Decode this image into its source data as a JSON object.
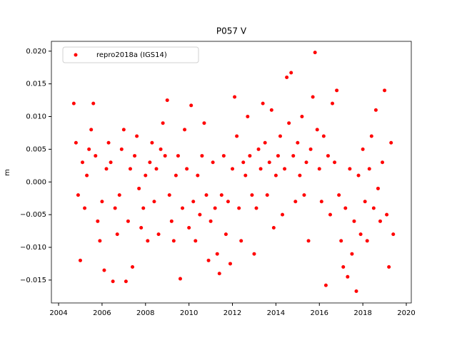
{
  "chart_data": {
    "type": "scatter",
    "title": "P057 V",
    "y_label": "m",
    "legend_loc": "upper left",
    "grid": false,
    "xlim": [
      2003.67,
      2020.23
    ],
    "xticks": [
      2004,
      2006,
      2008,
      2010,
      2012,
      2014,
      2016,
      2018,
      2020
    ],
    "ylim": [
      -0.0185,
      0.0215
    ],
    "yticks": [
      {
        "value": 0.02,
        "label": "0.020"
      },
      {
        "value": 0.015,
        "label": "0.015"
      },
      {
        "value": 0.01,
        "label": "0.010"
      },
      {
        "value": 0.005,
        "label": "0.005"
      },
      {
        "value": 0,
        "label": "0.000"
      },
      {
        "value": -0.005,
        "label": "−0.005"
      },
      {
        "value": -0.01,
        "label": "−0.010"
      },
      {
        "value": -0.015,
        "label": "−0.015"
      }
    ],
    "series": [
      {
        "name": "repro2018a (IGS14)",
        "color": "#ff0000",
        "x": [
          2004.7,
          2004.8,
          2004.9,
          2005.0,
          2005.1,
          2005.2,
          2005.3,
          2005.4,
          2005.5,
          2005.6,
          2005.7,
          2005.8,
          2005.9,
          2006.0,
          2006.1,
          2006.2,
          2006.3,
          2006.4,
          2006.5,
          2006.6,
          2006.7,
          2006.8,
          2006.9,
          2007.0,
          2007.1,
          2007.2,
          2007.3,
          2007.4,
          2007.5,
          2007.6,
          2007.7,
          2007.8,
          2007.9,
          2008.0,
          2008.1,
          2008.2,
          2008.3,
          2008.4,
          2008.5,
          2008.6,
          2008.7,
          2008.8,
          2008.9,
          2009.0,
          2009.1,
          2009.2,
          2009.3,
          2009.4,
          2009.5,
          2009.6,
          2009.7,
          2009.8,
          2009.9,
          2010.0,
          2010.1,
          2010.2,
          2010.3,
          2010.4,
          2010.5,
          2010.6,
          2010.7,
          2010.8,
          2010.9,
          2011.0,
          2011.1,
          2011.2,
          2011.3,
          2011.4,
          2011.5,
          2011.6,
          2011.7,
          2011.8,
          2011.9,
          2012.0,
          2012.1,
          2012.2,
          2012.3,
          2012.4,
          2012.5,
          2012.6,
          2012.7,
          2012.8,
          2012.9,
          2013.0,
          2013.1,
          2013.2,
          2013.3,
          2013.4,
          2013.5,
          2013.6,
          2013.7,
          2013.8,
          2013.9,
          2014.0,
          2014.1,
          2014.2,
          2014.3,
          2014.4,
          2014.5,
          2014.6,
          2014.7,
          2014.8,
          2014.9,
          2015.0,
          2015.1,
          2015.2,
          2015.3,
          2015.4,
          2015.5,
          2015.6,
          2015.7,
          2015.8,
          2015.9,
          2016.0,
          2016.1,
          2016.2,
          2016.3,
          2016.4,
          2016.5,
          2016.6,
          2016.7,
          2016.8,
          2016.9,
          2017.0,
          2017.1,
          2017.2,
          2017.3,
          2017.4,
          2017.5,
          2017.6,
          2017.7,
          2017.8,
          2017.9,
          2018.0,
          2018.1,
          2018.2,
          2018.3,
          2018.4,
          2018.5,
          2018.6,
          2018.7,
          2018.8,
          2018.9,
          2019.0,
          2019.1,
          2019.2,
          2019.3,
          2019.4
        ],
        "values": [
          0.012,
          0.006,
          -0.002,
          -0.012,
          0.003,
          -0.004,
          0.001,
          0.005,
          0.008,
          0.012,
          0.004,
          -0.006,
          -0.009,
          -0.003,
          -0.0135,
          0.002,
          0.006,
          0.003,
          -0.0152,
          -0.004,
          -0.008,
          -0.002,
          0.005,
          0.008,
          -0.0152,
          -0.006,
          0.002,
          -0.013,
          0.004,
          0.007,
          -0.001,
          -0.007,
          -0.004,
          0.001,
          -0.009,
          0.003,
          0.006,
          -0.003,
          0.002,
          -0.008,
          0.005,
          0.009,
          0.004,
          0.0125,
          -0.002,
          -0.006,
          -0.009,
          0.001,
          0.004,
          -0.0148,
          -0.004,
          0.008,
          0.002,
          -0.007,
          0.0117,
          -0.003,
          -0.009,
          0.001,
          -0.005,
          0.004,
          0.009,
          -0.002,
          -0.012,
          -0.006,
          0.003,
          -0.004,
          -0.011,
          -0.014,
          -0.002,
          0.004,
          -0.008,
          -0.003,
          -0.0125,
          0.002,
          0.013,
          0.007,
          -0.004,
          -0.009,
          0.003,
          0.001,
          0.01,
          0.004,
          -0.002,
          -0.011,
          -0.004,
          0.005,
          0.002,
          0.012,
          0.006,
          -0.002,
          0.003,
          0.011,
          -0.007,
          0.001,
          0.004,
          0.007,
          -0.005,
          0.002,
          0.016,
          0.009,
          0.0167,
          0.004,
          -0.003,
          0.006,
          0.001,
          0.01,
          -0.002,
          0.003,
          -0.009,
          0.005,
          0.013,
          0.0198,
          0.008,
          0.002,
          -0.003,
          0.007,
          -0.0158,
          0.004,
          -0.005,
          0.012,
          0.003,
          0.014,
          -0.002,
          -0.009,
          -0.013,
          -0.004,
          -0.0145,
          0.002,
          -0.011,
          -0.006,
          -0.0167,
          0.001,
          -0.008,
          0.005,
          -0.003,
          -0.009,
          0.002,
          0.007,
          -0.004,
          0.011,
          -0.001,
          -0.006,
          0.003,
          0.014,
          -0.005,
          -0.013,
          0.006,
          -0.008
        ]
      }
    ]
  }
}
